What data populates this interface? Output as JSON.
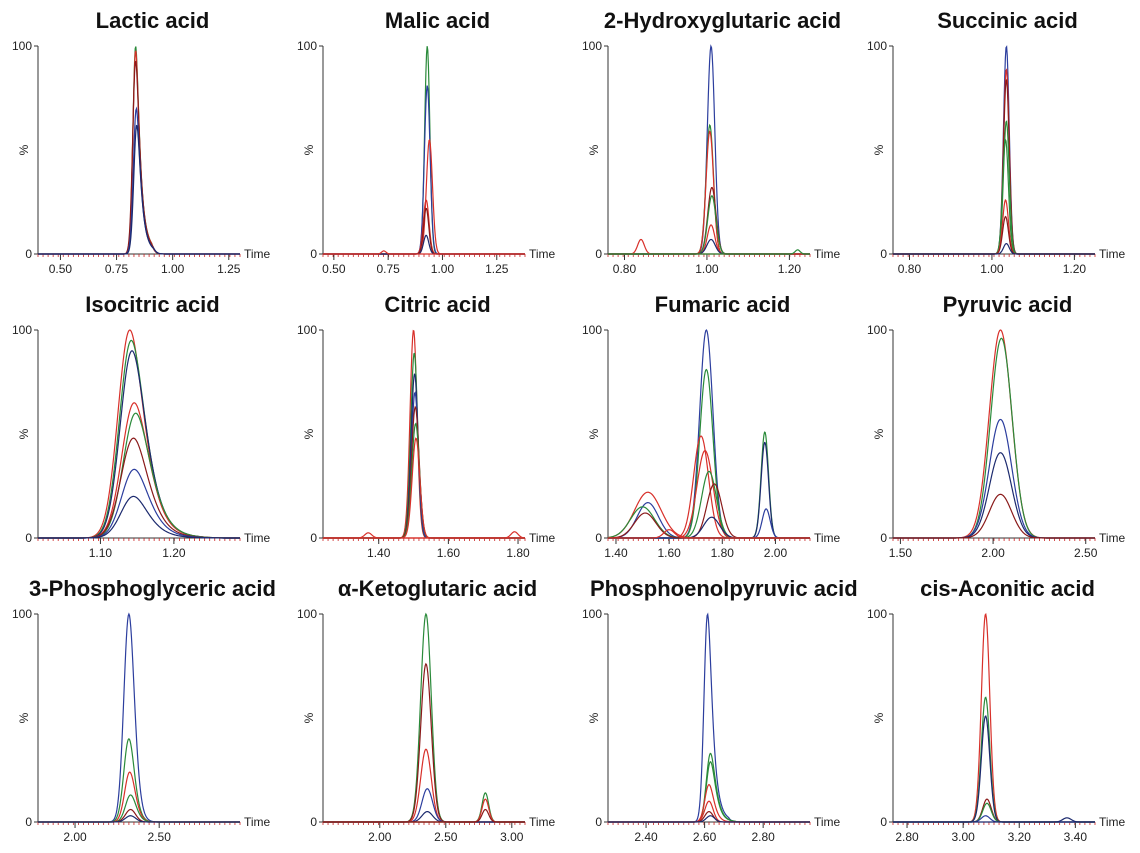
{
  "colors": {
    "navy": "#1c2a6e",
    "blue": "#2c3e9e",
    "green": "#2a8a3a",
    "red": "#d8302a",
    "darkred": "#8a1a1a",
    "axis": "#333333",
    "tick_red": "#cc2222"
  },
  "axis_text": {
    "y_top": "100",
    "y_mid": "%",
    "y_zero": "0",
    "x_unit": "Time"
  },
  "chart_data": [
    {
      "type": "line",
      "title": "Lactic acid",
      "xlim": [
        0.4,
        1.3
      ],
      "ylim": [
        0,
        100
      ],
      "xticks": [
        "0.50",
        "0.75",
        "1.00",
        "1.25"
      ],
      "peaks": [
        {
          "color": "green",
          "center": 0.835,
          "height": 100,
          "width": 0.012,
          "tail": 0.05
        },
        {
          "color": "red",
          "center": 0.835,
          "height": 98,
          "width": 0.012,
          "tail": 0.05
        },
        {
          "color": "darkred",
          "center": 0.835,
          "height": 93,
          "width": 0.013,
          "tail": 0.05
        },
        {
          "color": "blue",
          "center": 0.838,
          "height": 70,
          "width": 0.013,
          "tail": 0.05
        },
        {
          "color": "navy",
          "center": 0.84,
          "height": 62,
          "width": 0.013,
          "tail": 0.05
        }
      ]
    },
    {
      "type": "line",
      "title": "Malic acid",
      "xlim": [
        0.45,
        1.38
      ],
      "ylim": [
        0,
        100
      ],
      "xticks": [
        "0.50",
        "0.75",
        "1.00",
        "1.25"
      ],
      "peaks": [
        {
          "color": "green",
          "center": 0.93,
          "height": 100,
          "width": 0.012
        },
        {
          "color": "blue",
          "center": 0.93,
          "height": 81,
          "width": 0.013
        },
        {
          "color": "red",
          "center": 0.94,
          "height": 55,
          "width": 0.014
        },
        {
          "color": "red",
          "center": 0.925,
          "height": 26,
          "width": 0.013
        },
        {
          "color": "darkred",
          "center": 0.925,
          "height": 22,
          "width": 0.012
        },
        {
          "color": "navy",
          "center": 0.925,
          "height": 9,
          "width": 0.012
        },
        {
          "color": "red",
          "center": 0.73,
          "height": 1.5,
          "width": 0.01
        }
      ]
    },
    {
      "type": "line",
      "title": "2-Hydroxyglutaric acid",
      "xlim": [
        0.76,
        1.25
      ],
      "ylim": [
        0,
        100
      ],
      "xticks": [
        "0.80",
        "1.00",
        "1.20"
      ],
      "peaks": [
        {
          "color": "blue",
          "center": 1.01,
          "height": 100,
          "width": 0.009
        },
        {
          "color": "green",
          "center": 1.007,
          "height": 62,
          "width": 0.009
        },
        {
          "color": "red",
          "center": 1.007,
          "height": 59,
          "width": 0.009
        },
        {
          "color": "darkred",
          "center": 1.012,
          "height": 32,
          "width": 0.01
        },
        {
          "color": "green",
          "center": 1.012,
          "height": 28,
          "width": 0.01
        },
        {
          "color": "red",
          "center": 1.01,
          "height": 14,
          "width": 0.009
        },
        {
          "color": "navy",
          "center": 1.01,
          "height": 7,
          "width": 0.01
        },
        {
          "color": "red",
          "center": 0.84,
          "height": 7,
          "width": 0.008
        },
        {
          "color": "green",
          "center": 1.22,
          "height": 2,
          "width": 0.006
        }
      ]
    },
    {
      "type": "line",
      "title": "Succinic acid",
      "xlim": [
        0.76,
        1.25
      ],
      "ylim": [
        0,
        100
      ],
      "xticks": [
        "0.80",
        "1.00",
        "1.20"
      ],
      "peaks": [
        {
          "color": "blue",
          "center": 1.035,
          "height": 100,
          "width": 0.007
        },
        {
          "color": "red",
          "center": 1.035,
          "height": 89,
          "width": 0.007
        },
        {
          "color": "darkred",
          "center": 1.035,
          "height": 84,
          "width": 0.007
        },
        {
          "color": "green",
          "center": 1.035,
          "height": 64,
          "width": 0.007
        },
        {
          "color": "green",
          "center": 1.033,
          "height": 55,
          "width": 0.007
        },
        {
          "color": "red",
          "center": 1.033,
          "height": 26,
          "width": 0.007
        },
        {
          "color": "darkred",
          "center": 1.033,
          "height": 18,
          "width": 0.007
        },
        {
          "color": "navy",
          "center": 1.035,
          "height": 5,
          "width": 0.007
        }
      ]
    },
    {
      "type": "line",
      "title": "Isocitric acid",
      "xlim": [
        1.015,
        1.29
      ],
      "ylim": [
        0,
        100
      ],
      "xticks": [
        "1.10",
        "1.20"
      ],
      "peaks": [
        {
          "color": "red",
          "center": 1.14,
          "height": 100,
          "width": 0.016,
          "tail": 0.04
        },
        {
          "color": "green",
          "center": 1.142,
          "height": 95,
          "width": 0.016,
          "tail": 0.04
        },
        {
          "color": "navy",
          "center": 1.143,
          "height": 90,
          "width": 0.016,
          "tail": 0.04
        },
        {
          "color": "red",
          "center": 1.146,
          "height": 65,
          "width": 0.017,
          "tail": 0.04
        },
        {
          "color": "green",
          "center": 1.148,
          "height": 60,
          "width": 0.017,
          "tail": 0.04
        },
        {
          "color": "darkred",
          "center": 1.145,
          "height": 48,
          "width": 0.017,
          "tail": 0.04
        },
        {
          "color": "blue",
          "center": 1.146,
          "height": 33,
          "width": 0.017,
          "tail": 0.04
        },
        {
          "color": "navy",
          "center": 1.145,
          "height": 20,
          "width": 0.017,
          "tail": 0.04
        }
      ]
    },
    {
      "type": "line",
      "title": "Citric acid",
      "xlim": [
        1.24,
        1.82
      ],
      "ylim": [
        0,
        100
      ],
      "xticks": [
        "1.40",
        "1.60",
        "1.80"
      ],
      "peaks": [
        {
          "color": "red",
          "center": 1.5,
          "height": 100,
          "width": 0.01
        },
        {
          "color": "green",
          "center": 1.502,
          "height": 89,
          "width": 0.01
        },
        {
          "color": "navy",
          "center": 1.503,
          "height": 79,
          "width": 0.01
        },
        {
          "color": "blue",
          "center": 1.504,
          "height": 70,
          "width": 0.01
        },
        {
          "color": "darkred",
          "center": 1.505,
          "height": 63,
          "width": 0.011
        },
        {
          "color": "green",
          "center": 1.506,
          "height": 55,
          "width": 0.011
        },
        {
          "color": "red",
          "center": 1.507,
          "height": 48,
          "width": 0.011
        },
        {
          "color": "red",
          "center": 1.37,
          "height": 2.5,
          "width": 0.01
        },
        {
          "color": "red",
          "center": 1.79,
          "height": 3,
          "width": 0.01
        }
      ]
    },
    {
      "type": "line",
      "title": "Fumaric acid",
      "xlim": [
        1.37,
        2.13
      ],
      "ylim": [
        0,
        100
      ],
      "xticks": [
        "1.40",
        "1.60",
        "1.80",
        "2.00"
      ],
      "peaks": [
        {
          "color": "blue",
          "center": 1.74,
          "height": 100,
          "width": 0.025
        },
        {
          "color": "green",
          "center": 1.74,
          "height": 81,
          "width": 0.025
        },
        {
          "color": "red",
          "center": 1.72,
          "height": 49,
          "width": 0.028
        },
        {
          "color": "red",
          "center": 1.735,
          "height": 42,
          "width": 0.03
        },
        {
          "color": "green",
          "center": 1.75,
          "height": 32,
          "width": 0.028
        },
        {
          "color": "darkred",
          "center": 1.77,
          "height": 26,
          "width": 0.028
        },
        {
          "color": "navy",
          "center": 1.76,
          "height": 10,
          "width": 0.03
        },
        {
          "color": "green",
          "center": 1.96,
          "height": 51,
          "width": 0.014
        },
        {
          "color": "navy",
          "center": 1.96,
          "height": 46,
          "width": 0.014
        },
        {
          "color": "blue",
          "center": 1.965,
          "height": 14,
          "width": 0.015
        },
        {
          "color": "red",
          "center": 1.52,
          "height": 22,
          "width": 0.05
        },
        {
          "color": "blue",
          "center": 1.52,
          "height": 17,
          "width": 0.04
        },
        {
          "color": "green",
          "center": 1.5,
          "height": 15,
          "width": 0.045
        },
        {
          "color": "darkred",
          "center": 1.51,
          "height": 12,
          "width": 0.04
        },
        {
          "color": "red",
          "center": 1.6,
          "height": 4,
          "width": 0.02
        }
      ]
    },
    {
      "type": "line",
      "title": "Pyruvic acid",
      "xlim": [
        1.46,
        2.55
      ],
      "ylim": [
        0,
        100
      ],
      "xticks": [
        "1.50",
        "2.00",
        "2.50"
      ],
      "peaks": [
        {
          "color": "red",
          "center": 2.04,
          "height": 100,
          "width": 0.06
        },
        {
          "color": "green",
          "center": 2.045,
          "height": 96,
          "width": 0.058
        },
        {
          "color": "blue",
          "center": 2.04,
          "height": 57,
          "width": 0.06
        },
        {
          "color": "navy",
          "center": 2.04,
          "height": 41,
          "width": 0.06
        },
        {
          "color": "darkred",
          "center": 2.04,
          "height": 21,
          "width": 0.06
        }
      ]
    },
    {
      "type": "line",
      "title": "3-Phosphoglyceric acid",
      "xlim": [
        1.78,
        2.98
      ],
      "ylim": [
        0,
        100
      ],
      "xticks": [
        "2.00",
        "2.50"
      ],
      "peaks": [
        {
          "color": "blue",
          "center": 2.32,
          "height": 100,
          "width": 0.03,
          "tail": 0.04
        },
        {
          "color": "green",
          "center": 2.32,
          "height": 40,
          "width": 0.03,
          "tail": 0.04
        },
        {
          "color": "red",
          "center": 2.325,
          "height": 24,
          "width": 0.03,
          "tail": 0.04
        },
        {
          "color": "green",
          "center": 2.33,
          "height": 13,
          "width": 0.03,
          "tail": 0.04
        },
        {
          "color": "darkred",
          "center": 2.33,
          "height": 6,
          "width": 0.03
        },
        {
          "color": "navy",
          "center": 2.33,
          "height": 3,
          "width": 0.03
        }
      ]
    },
    {
      "type": "line",
      "title": "α-Ketoglutaric acid",
      "xlim": [
        1.57,
        3.1
      ],
      "ylim": [
        0,
        100
      ],
      "xticks": [
        "2.00",
        "2.50",
        "3.00"
      ],
      "peaks": [
        {
          "color": "green",
          "center": 2.35,
          "height": 100,
          "width": 0.04
        },
        {
          "color": "darkred",
          "center": 2.35,
          "height": 76,
          "width": 0.04
        },
        {
          "color": "red",
          "center": 2.35,
          "height": 35,
          "width": 0.04
        },
        {
          "color": "blue",
          "center": 2.36,
          "height": 16,
          "width": 0.04
        },
        {
          "color": "navy",
          "center": 2.36,
          "height": 5,
          "width": 0.04
        },
        {
          "color": "green",
          "center": 2.8,
          "height": 14,
          "width": 0.025
        },
        {
          "color": "red",
          "center": 2.8,
          "height": 11,
          "width": 0.025
        },
        {
          "color": "darkred",
          "center": 2.8,
          "height": 6,
          "width": 0.025
        }
      ]
    },
    {
      "type": "line",
      "title": "Phosphoenolpyruvic acid",
      "xlim": [
        2.27,
        2.96
      ],
      "ylim": [
        0,
        100
      ],
      "xticks": [
        "2.40",
        "2.60",
        "2.80"
      ],
      "peaks": [
        {
          "color": "blue",
          "center": 2.61,
          "height": 100,
          "width": 0.012,
          "tail": 0.04
        },
        {
          "color": "green",
          "center": 2.62,
          "height": 33,
          "width": 0.014,
          "tail": 0.04
        },
        {
          "color": "green",
          "center": 2.62,
          "height": 29,
          "width": 0.014,
          "tail": 0.04
        },
        {
          "color": "red",
          "center": 2.615,
          "height": 18,
          "width": 0.014,
          "tail": 0.03
        },
        {
          "color": "red",
          "center": 2.615,
          "height": 10,
          "width": 0.014
        },
        {
          "color": "darkred",
          "center": 2.615,
          "height": 5,
          "width": 0.014
        },
        {
          "color": "navy",
          "center": 2.62,
          "height": 3,
          "width": 0.014
        }
      ]
    },
    {
      "type": "line",
      "title": "cis-Aconitic acid",
      "xlim": [
        2.75,
        3.47
      ],
      "ylim": [
        0,
        100
      ],
      "xticks": [
        "2.80",
        "3.00",
        "3.20",
        "3.40"
      ],
      "peaks": [
        {
          "color": "red",
          "center": 3.08,
          "height": 100,
          "width": 0.015
        },
        {
          "color": "green",
          "center": 3.08,
          "height": 60,
          "width": 0.015
        },
        {
          "color": "navy",
          "center": 3.08,
          "height": 51,
          "width": 0.015
        },
        {
          "color": "darkred",
          "center": 3.085,
          "height": 11,
          "width": 0.015
        },
        {
          "color": "green",
          "center": 3.085,
          "height": 9,
          "width": 0.015
        },
        {
          "color": "blue",
          "center": 3.08,
          "height": 3,
          "width": 0.015
        },
        {
          "color": "navy",
          "center": 3.37,
          "height": 2,
          "width": 0.015
        }
      ]
    }
  ]
}
